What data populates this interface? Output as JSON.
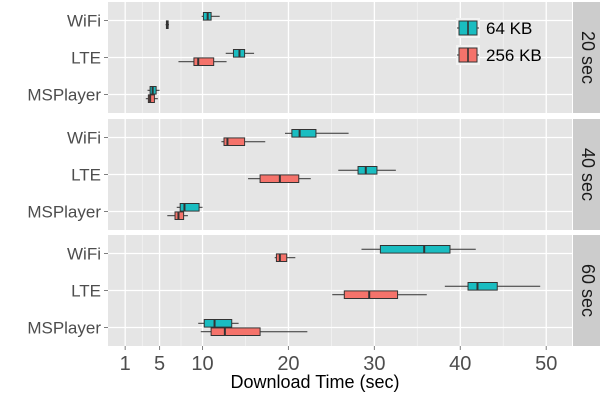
{
  "chart_data": {
    "type": "boxplot",
    "xlabel": "Download Time (sec)",
    "x_ticks": [
      1,
      5,
      10,
      20,
      30,
      40,
      50
    ],
    "xlim": [
      -1,
      53
    ],
    "categories": [
      "WiFi",
      "LTE",
      "MSPlayer"
    ],
    "legend": {
      "placement": "top-right",
      "entries": [
        {
          "name": "64 KB",
          "color": "#1ABDC1"
        },
        {
          "name": "256 KB",
          "color": "#F5736B"
        }
      ]
    },
    "facets": [
      {
        "label": "20 sec",
        "boxes": [
          {
            "category": "WiFi",
            "series": "64 KB",
            "whisker_low": 9.9,
            "q1": 10.1,
            "median": 10.6,
            "q3": 11.0,
            "whisker_high": 12.0
          },
          {
            "category": "WiFi",
            "series": "256 KB",
            "whisker_low": 5.7,
            "q1": 5.8,
            "median": 5.9,
            "q3": 6.0,
            "whisker_high": 6.1
          },
          {
            "category": "LTE",
            "series": "64 KB",
            "whisker_low": 12.7,
            "q1": 13.6,
            "median": 14.3,
            "q3": 14.9,
            "whisker_high": 16.0
          },
          {
            "category": "LTE",
            "series": "256 KB",
            "whisker_low": 7.2,
            "q1": 9.0,
            "median": 9.5,
            "q3": 11.3,
            "whisker_high": 12.8
          },
          {
            "category": "MSPlayer",
            "series": "64 KB",
            "whisker_low": 3.6,
            "q1": 3.9,
            "median": 4.2,
            "q3": 4.6,
            "whisker_high": 5.0
          },
          {
            "category": "MSPlayer",
            "series": "256 KB",
            "whisker_low": 3.4,
            "q1": 3.7,
            "median": 3.9,
            "q3": 4.4,
            "whisker_high": 4.8
          }
        ]
      },
      {
        "label": "40 sec",
        "boxes": [
          {
            "category": "WiFi",
            "series": "64 KB",
            "whisker_low": 19.6,
            "q1": 20.4,
            "median": 21.3,
            "q3": 23.2,
            "whisker_high": 27.0
          },
          {
            "category": "WiFi",
            "series": "256 KB",
            "whisker_low": 12.2,
            "q1": 12.5,
            "median": 12.9,
            "q3": 14.9,
            "whisker_high": 17.3
          },
          {
            "category": "LTE",
            "series": "64 KB",
            "whisker_low": 25.8,
            "q1": 28.1,
            "median": 29.0,
            "q3": 30.3,
            "whisker_high": 32.5
          },
          {
            "category": "LTE",
            "series": "256 KB",
            "whisker_low": 15.3,
            "q1": 16.7,
            "median": 19.0,
            "q3": 21.2,
            "whisker_high": 22.6
          },
          {
            "category": "MSPlayer",
            "series": "64 KB",
            "whisker_low": 7.0,
            "q1": 7.4,
            "median": 7.9,
            "q3": 9.6,
            "whisker_high": 10.0
          },
          {
            "category": "MSPlayer",
            "series": "256 KB",
            "whisker_low": 5.9,
            "q1": 6.8,
            "median": 7.2,
            "q3": 7.8,
            "whisker_high": 8.3
          }
        ]
      },
      {
        "label": "60 sec",
        "boxes": [
          {
            "category": "WiFi",
            "series": "64 KB",
            "whisker_low": 28.5,
            "q1": 30.7,
            "median": 35.8,
            "q3": 38.8,
            "whisker_high": 41.8
          },
          {
            "category": "WiFi",
            "series": "256 KB",
            "whisker_low": 18.4,
            "q1": 18.6,
            "median": 19.0,
            "q3": 19.8,
            "whisker_high": 20.8
          },
          {
            "category": "LTE",
            "series": "64 KB",
            "whisker_low": 38.2,
            "q1": 40.9,
            "median": 42.0,
            "q3": 44.3,
            "whisker_high": 49.3
          },
          {
            "category": "LTE",
            "series": "256 KB",
            "whisker_low": 25.1,
            "q1": 26.5,
            "median": 29.4,
            "q3": 32.7,
            "whisker_high": 36.1
          },
          {
            "category": "MSPlayer",
            "series": "64 KB",
            "whisker_low": 9.5,
            "q1": 10.2,
            "median": 11.4,
            "q3": 13.4,
            "whisker_high": 14.2
          },
          {
            "category": "MSPlayer",
            "series": "256 KB",
            "whisker_low": 9.8,
            "q1": 11.0,
            "median": 12.6,
            "q3": 16.7,
            "whisker_high": 22.2
          }
        ]
      }
    ]
  }
}
